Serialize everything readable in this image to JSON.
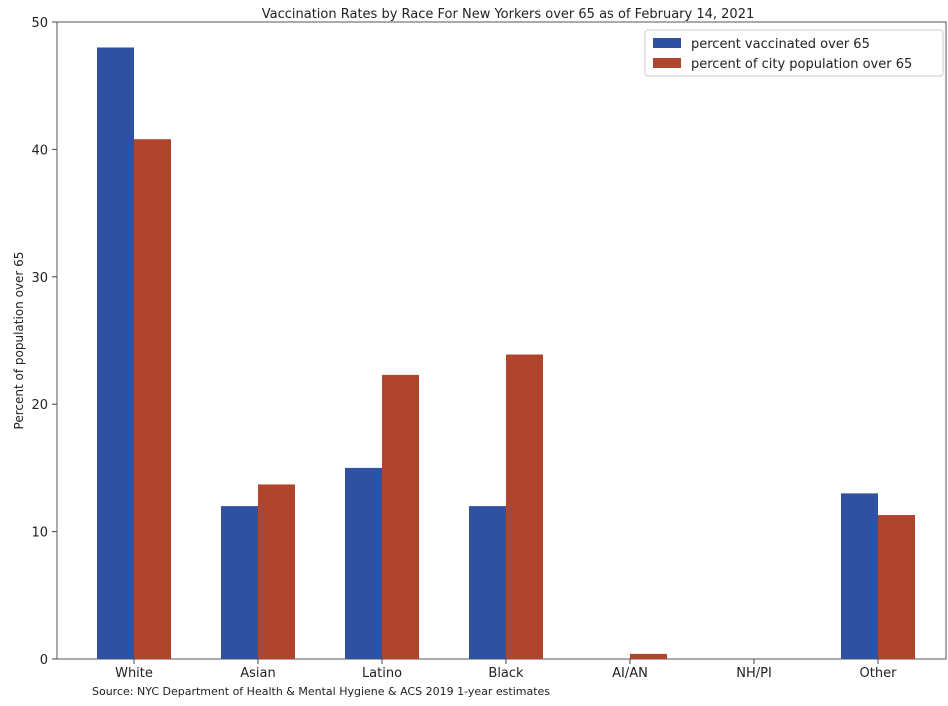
{
  "chart_data": {
    "type": "bar",
    "title": "Vaccination Rates by Race For New Yorkers over 65 as of February 14, 2021",
    "xlabel": "",
    "ylabel": "Percent of population over 65",
    "ylim": [
      0,
      50
    ],
    "yticks": [
      0,
      10,
      20,
      30,
      40,
      50
    ],
    "categories": [
      "White",
      "Asian",
      "Latino",
      "Black",
      "AI/AN",
      "NH/PI",
      "Other"
    ],
    "series": [
      {
        "name": "percent vaccinated over 65",
        "color": "#3050a0",
        "values": [
          48,
          12,
          15,
          12,
          0,
          0,
          13
        ]
      },
      {
        "name": "percent of city population over 65",
        "color": "#b0442c",
        "values": [
          40.8,
          13.7,
          22.3,
          23.9,
          0.4,
          0,
          11.3
        ]
      }
    ],
    "legend": "top-right",
    "grid": false,
    "source": "Source: NYC Department of Health & Mental Hygiene & ACS 2019 1-year estimates"
  }
}
